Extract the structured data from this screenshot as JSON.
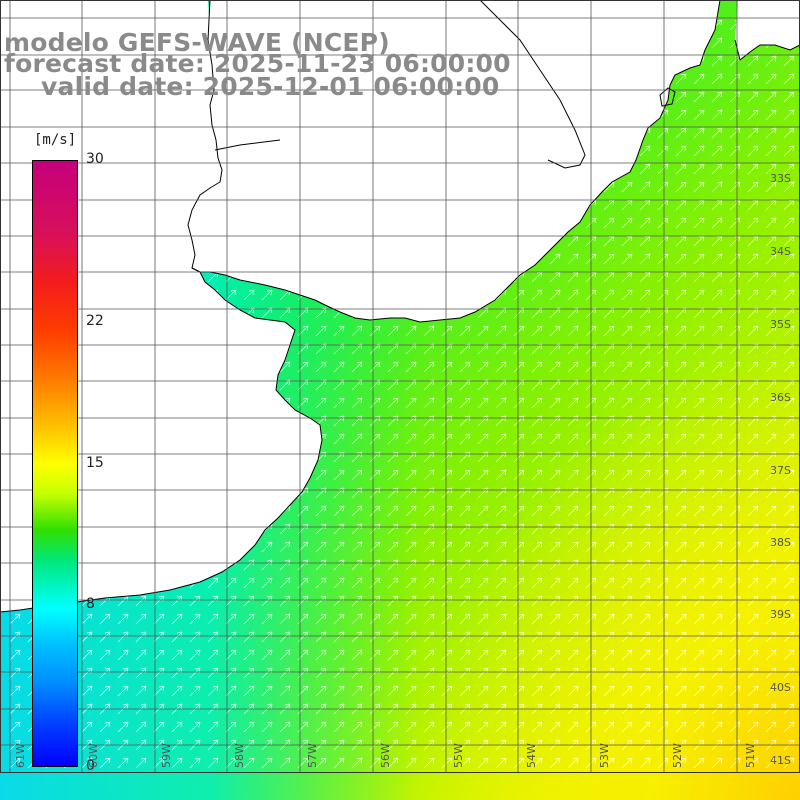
{
  "title": {
    "line1": "modelo GEFS-WAVE (NCEP)",
    "line2": "forecast date: 2025-11-23 06:00:00",
    "line3": "valid date: 2025-12-01 06:00:00"
  },
  "colorbar": {
    "unit": "[m/s]",
    "ticks": [
      {
        "label": "30",
        "value": 30
      },
      {
        "label": "22",
        "value": 22
      },
      {
        "label": "15",
        "value": 15
      },
      {
        "label": "8",
        "value": 8
      },
      {
        "label": "0",
        "value": 0
      }
    ]
  },
  "lat_labels": [
    "33S",
    "34S",
    "35S",
    "36S",
    "37S",
    "38S",
    "39S",
    "40S",
    "41S"
  ],
  "lon_labels": [
    "61W",
    "60W",
    "59W",
    "58W",
    "57W",
    "56W",
    "55W",
    "54W",
    "53W",
    "52W",
    "51W"
  ],
  "colors": {
    "land": "#ffffff",
    "coast": "#000000",
    "grid": "#555555",
    "arrow": "#ffffff"
  }
}
